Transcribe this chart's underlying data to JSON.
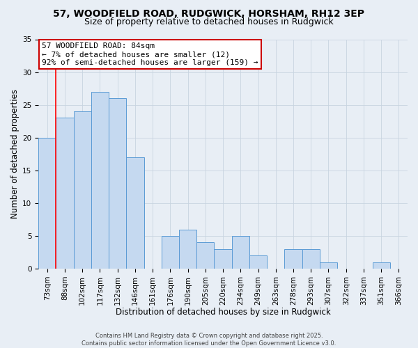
{
  "title1": "57, WOODFIELD ROAD, RUDGWICK, HORSHAM, RH12 3EP",
  "title2": "Size of property relative to detached houses in Rudgwick",
  "xlabel": "Distribution of detached houses by size in Rudgwick",
  "ylabel": "Number of detached properties",
  "categories": [
    "73sqm",
    "88sqm",
    "102sqm",
    "117sqm",
    "132sqm",
    "146sqm",
    "161sqm",
    "176sqm",
    "190sqm",
    "205sqm",
    "220sqm",
    "234sqm",
    "249sqm",
    "263sqm",
    "278sqm",
    "293sqm",
    "307sqm",
    "322sqm",
    "337sqm",
    "351sqm",
    "366sqm"
  ],
  "values": [
    20,
    23,
    24,
    27,
    26,
    17,
    0,
    5,
    6,
    4,
    3,
    5,
    2,
    0,
    3,
    3,
    1,
    0,
    0,
    1,
    0
  ],
  "bar_color": "#c5d9f0",
  "bar_edge_color": "#5b9bd5",
  "bar_width": 1.0,
  "red_line_x": 0.5,
  "annotation_line0": "57 WOODFIELD ROAD: 84sqm",
  "annotation_line1": "← 7% of detached houses are smaller (12)",
  "annotation_line2": "92% of semi-detached houses are larger (159) →",
  "annotation_box_color": "#ffffff",
  "annotation_border_color": "#cc0000",
  "ylim": [
    0,
    35
  ],
  "yticks": [
    0,
    5,
    10,
    15,
    20,
    25,
    30,
    35
  ],
  "footer1": "Contains HM Land Registry data © Crown copyright and database right 2025.",
  "footer2": "Contains public sector information licensed under the Open Government Licence v3.0.",
  "bg_color": "#e8eef5",
  "plot_bg_color": "#e8eef5",
  "grid_color": "#c8d4e0",
  "title_fontsize": 10,
  "subtitle_fontsize": 9,
  "axis_label_fontsize": 8.5,
  "tick_fontsize": 7.5,
  "annotation_fontsize": 8,
  "footer_fontsize": 6
}
